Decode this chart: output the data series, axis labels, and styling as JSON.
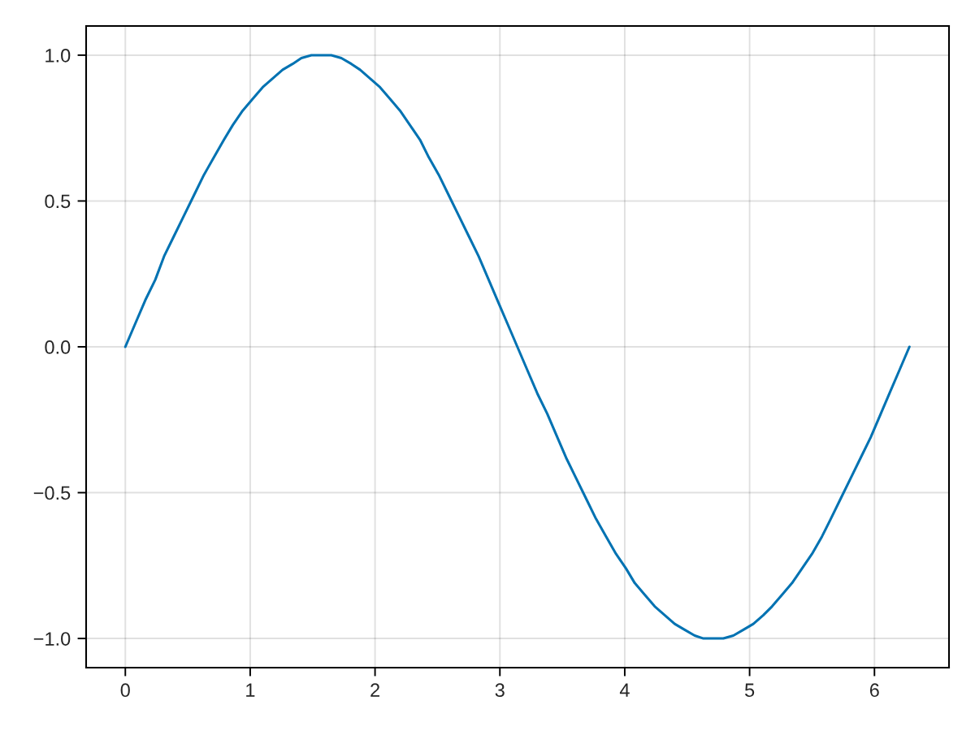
{
  "chart_data": {
    "type": "line",
    "x": [
      0,
      0.08,
      0.16,
      0.24,
      0.31,
      0.39,
      0.47,
      0.55,
      0.63,
      0.71,
      0.79,
      0.86,
      0.94,
      1.02,
      1.1,
      1.18,
      1.26,
      1.34,
      1.41,
      1.49,
      1.57,
      1.65,
      1.73,
      1.81,
      1.88,
      1.96,
      2.04,
      2.12,
      2.2,
      2.28,
      2.36,
      2.43,
      2.51,
      2.59,
      2.67,
      2.75,
      2.83,
      2.91,
      2.98,
      3.06,
      3.14,
      3.22,
      3.3,
      3.38,
      3.46,
      3.53,
      3.61,
      3.69,
      3.77,
      3.85,
      3.93,
      4.01,
      4.08,
      4.16,
      4.24,
      4.32,
      4.4,
      4.48,
      4.56,
      4.63,
      4.71,
      4.79,
      4.87,
      4.95,
      5.03,
      5.11,
      5.18,
      5.26,
      5.34,
      5.42,
      5.5,
      5.58,
      5.65,
      5.73,
      5.81,
      5.89,
      5.97,
      6.05,
      6.12,
      6.2,
      6.28
    ],
    "series": [
      {
        "color": "#0072b2",
        "values": [
          0,
          0.08,
          0.16,
          0.23,
          0.31,
          0.38,
          0.45,
          0.52,
          0.59,
          0.65,
          0.71,
          0.76,
          0.81,
          0.85,
          0.89,
          0.92,
          0.95,
          0.97,
          0.99,
          1.0,
          1.0,
          1.0,
          0.99,
          0.97,
          0.95,
          0.92,
          0.89,
          0.85,
          0.81,
          0.76,
          0.71,
          0.65,
          0.59,
          0.52,
          0.45,
          0.38,
          0.31,
          0.23,
          0.16,
          0.08,
          0,
          -0.08,
          -0.16,
          -0.23,
          -0.31,
          -0.38,
          -0.45,
          -0.52,
          -0.59,
          -0.65,
          -0.71,
          -0.76,
          -0.81,
          -0.85,
          -0.89,
          -0.92,
          -0.95,
          -0.97,
          -0.99,
          -1.0,
          -1.0,
          -1.0,
          -0.99,
          -0.97,
          -0.95,
          -0.92,
          -0.89,
          -0.85,
          -0.81,
          -0.76,
          -0.71,
          -0.65,
          -0.59,
          -0.52,
          -0.45,
          -0.38,
          -0.31,
          -0.23,
          -0.16,
          -0.08,
          0
        ]
      }
    ],
    "xlim": [
      -0.314,
      6.597
    ],
    "ylim": [
      -1.1,
      1.1
    ],
    "xticks": [
      0,
      1,
      2,
      3,
      4,
      5,
      6
    ],
    "yticks": [
      {
        "value": -1.0,
        "label": "−1.0"
      },
      {
        "value": -0.5,
        "label": "−0.5"
      },
      {
        "value": 0.0,
        "label": "0.0"
      },
      0.5,
      {
        "value": 1.0,
        "label": "1.0"
      }
    ],
    "grid": true,
    "line_style": "solid"
  }
}
